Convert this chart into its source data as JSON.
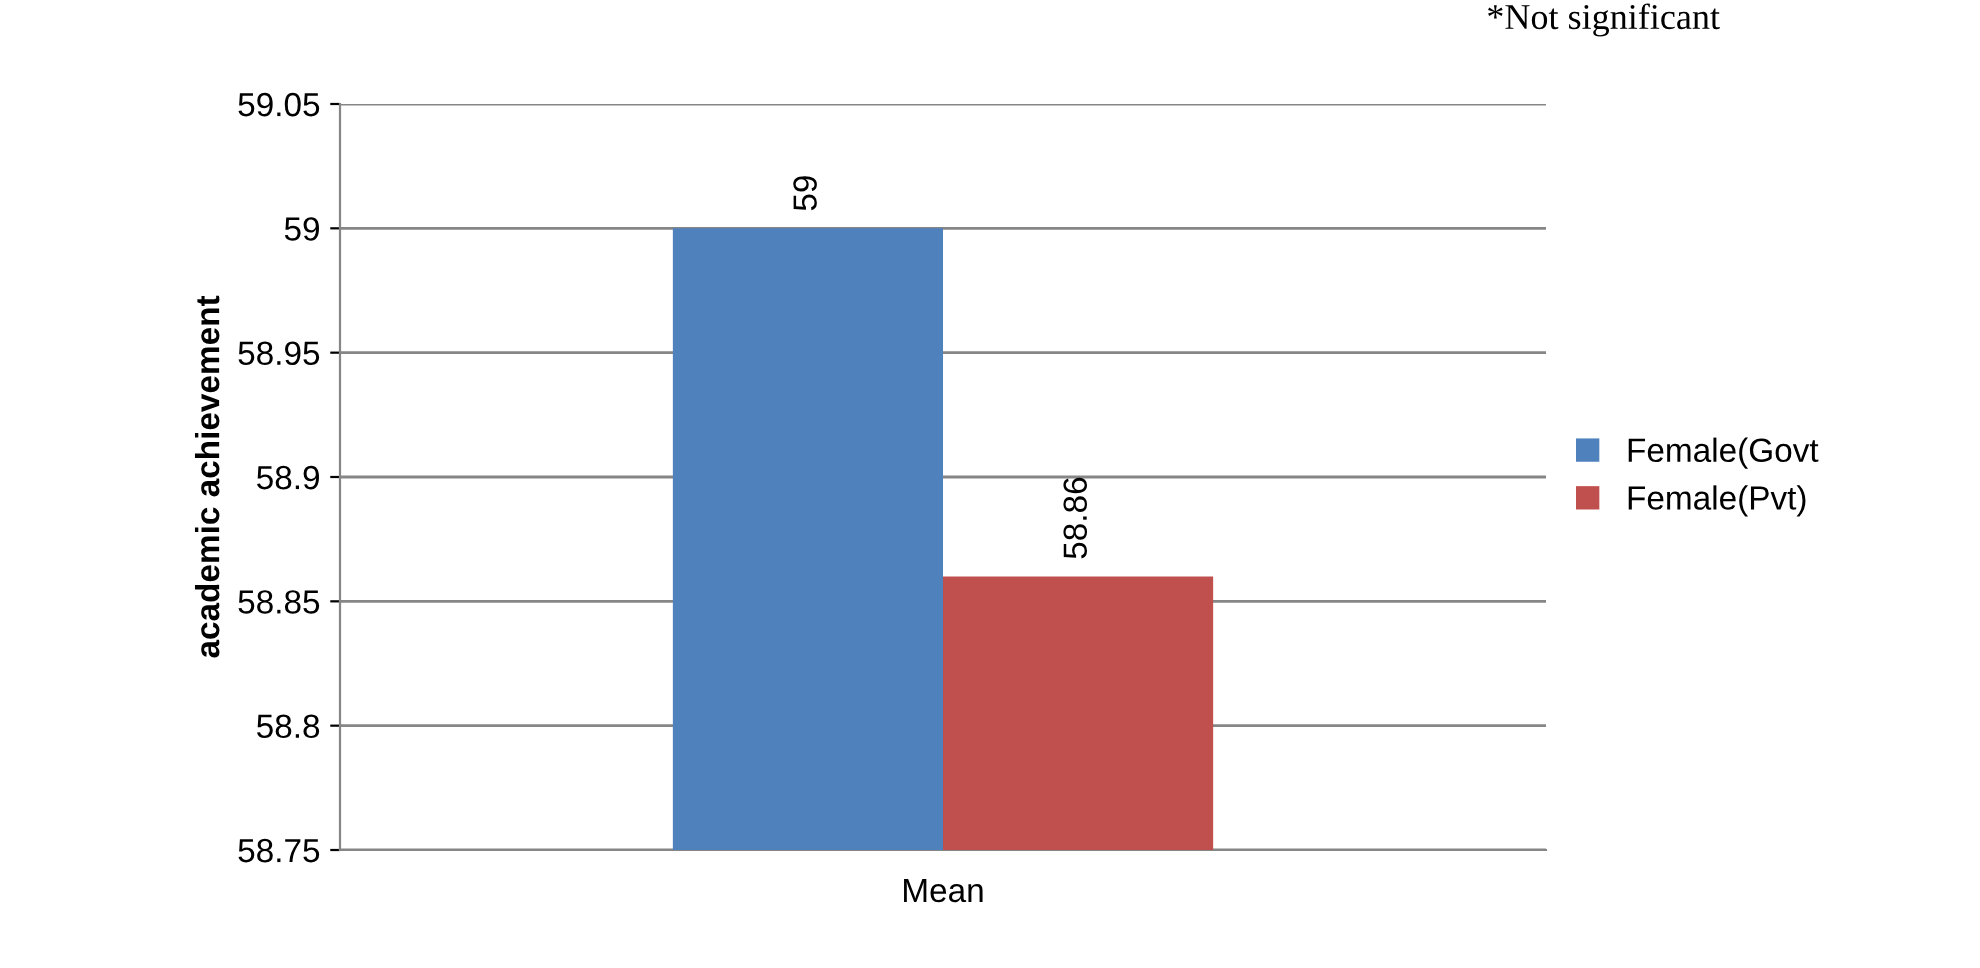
{
  "chart_data": {
    "type": "bar",
    "ylabel": "academic achievement",
    "categories": [
      "Mean"
    ],
    "series": [
      {
        "name": "Female(Govt",
        "color": "#4f81bd",
        "values": [
          59
        ]
      },
      {
        "name": "Female(Pvt)",
        "color": "#c0504d",
        "values": [
          58.86
        ]
      }
    ],
    "ylim": [
      58.75,
      59.05
    ],
    "yticks": [
      58.75,
      58.8,
      58.85,
      58.9,
      58.95,
      59,
      59.05
    ],
    "grid": "y",
    "legend": "right",
    "data_labels": true,
    "annotations": [
      "*Not significant"
    ]
  }
}
